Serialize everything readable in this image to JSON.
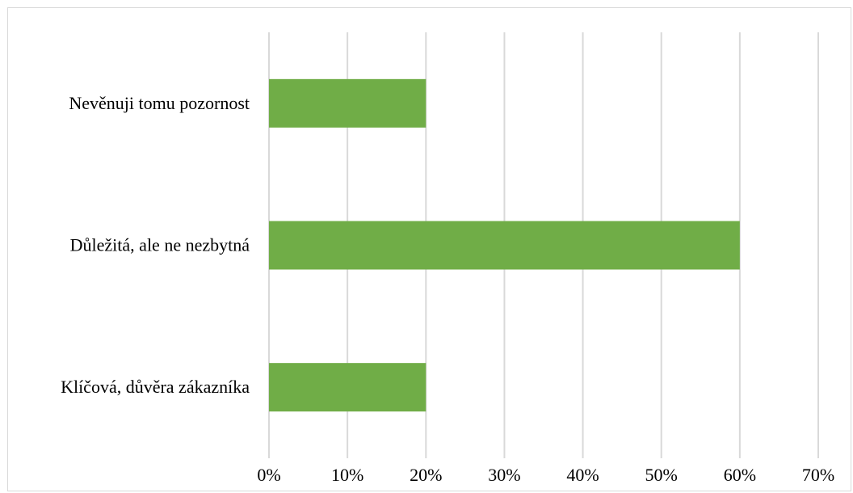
{
  "chart_data": {
    "type": "bar",
    "orientation": "horizontal",
    "title": "",
    "xlabel": "",
    "ylabel": "",
    "categories": [
      "Nevěnuji tomu pozornost",
      "Důležitá, ale ne nezbytná",
      "Klíčová, důvěra zákazníka"
    ],
    "values": [
      20,
      60,
      20
    ],
    "value_unit": "%",
    "xlim": [
      0,
      70
    ],
    "x_ticks": [
      "0%",
      "10%",
      "20%",
      "30%",
      "40%",
      "50%",
      "60%",
      "70%"
    ],
    "grid": "vertical",
    "legend": "none",
    "bar_color": "#70ad47",
    "grid_color": "#d9d9d9"
  }
}
